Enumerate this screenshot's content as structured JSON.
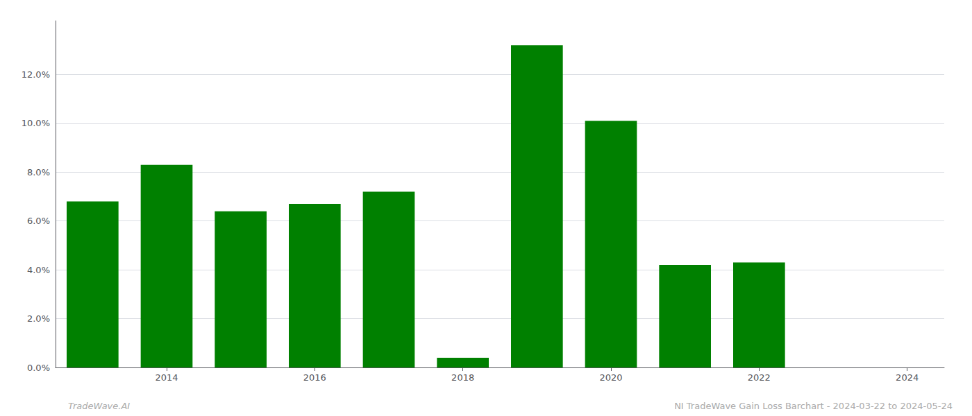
{
  "chart_data": {
    "type": "bar",
    "x": [
      2013,
      2014,
      2015,
      2016,
      2017,
      2018,
      2019,
      2020,
      2021,
      2022,
      2023
    ],
    "values": [
      0.068,
      0.083,
      0.064,
      0.067,
      0.072,
      0.004,
      0.132,
      0.101,
      0.042,
      0.043,
      0.0
    ],
    "color": "#008000",
    "xlim": [
      2012.5,
      2024.5
    ],
    "xticks": [
      2014,
      2016,
      2018,
      2020,
      2022,
      2024
    ],
    "ylim": [
      0,
      0.142
    ],
    "yticks": [
      {
        "value": 0.0,
        "label": "0.0%"
      },
      {
        "value": 0.02,
        "label": "2.0%"
      },
      {
        "value": 0.04,
        "label": "4.0%"
      },
      {
        "value": 0.06,
        "label": "6.0%"
      },
      {
        "value": 0.08,
        "label": "8.0%"
      },
      {
        "value": 0.1,
        "label": "10.0%"
      },
      {
        "value": 0.12,
        "label": "12.0%"
      }
    ],
    "grid": true,
    "annotations": [
      "TradeWave.AI",
      "NI TradeWave Gain Loss Barchart - 2024-03-22 to 2024-05-24"
    ]
  }
}
